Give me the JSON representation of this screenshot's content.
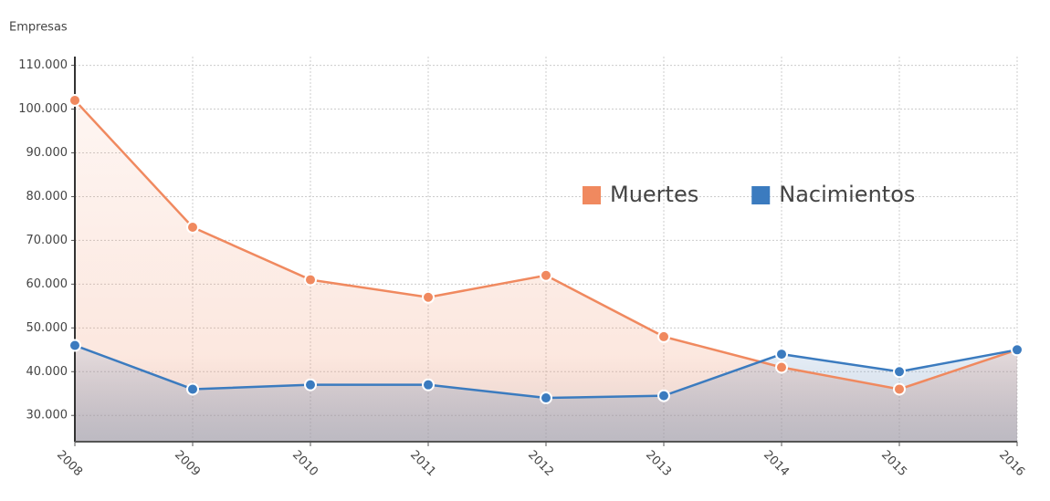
{
  "chart_data": {
    "type": "line",
    "y_label": "Empresas",
    "categories": [
      "2008",
      "2009",
      "2010",
      "2011",
      "2012",
      "2013",
      "2014",
      "2015",
      "2016"
    ],
    "series": [
      {
        "name": "Muertes",
        "color": "#f0895f",
        "values": [
          102000,
          73000,
          61000,
          57000,
          62000,
          48000,
          41000,
          36000,
          45000
        ]
      },
      {
        "name": "Nacimientos",
        "color": "#3b7bbf",
        "values": [
          46000,
          36000,
          37000,
          37000,
          34000,
          34500,
          44000,
          40000,
          45000
        ]
      }
    ],
    "ylim": [
      24000,
      112000
    ],
    "yticks": [
      {
        "value": 30000,
        "label": "30.000"
      },
      {
        "value": 40000,
        "label": "40.000"
      },
      {
        "value": 50000,
        "label": "50.000"
      },
      {
        "value": 60000,
        "label": "60.000"
      },
      {
        "value": 70000,
        "label": "70.000"
      },
      {
        "value": 80000,
        "label": "80.000"
      },
      {
        "value": 90000,
        "label": "90.000"
      },
      {
        "value": 100000,
        "label": "100.000"
      },
      {
        "value": 110000,
        "label": "110.000"
      }
    ],
    "grid": true,
    "legend": "top-right"
  }
}
